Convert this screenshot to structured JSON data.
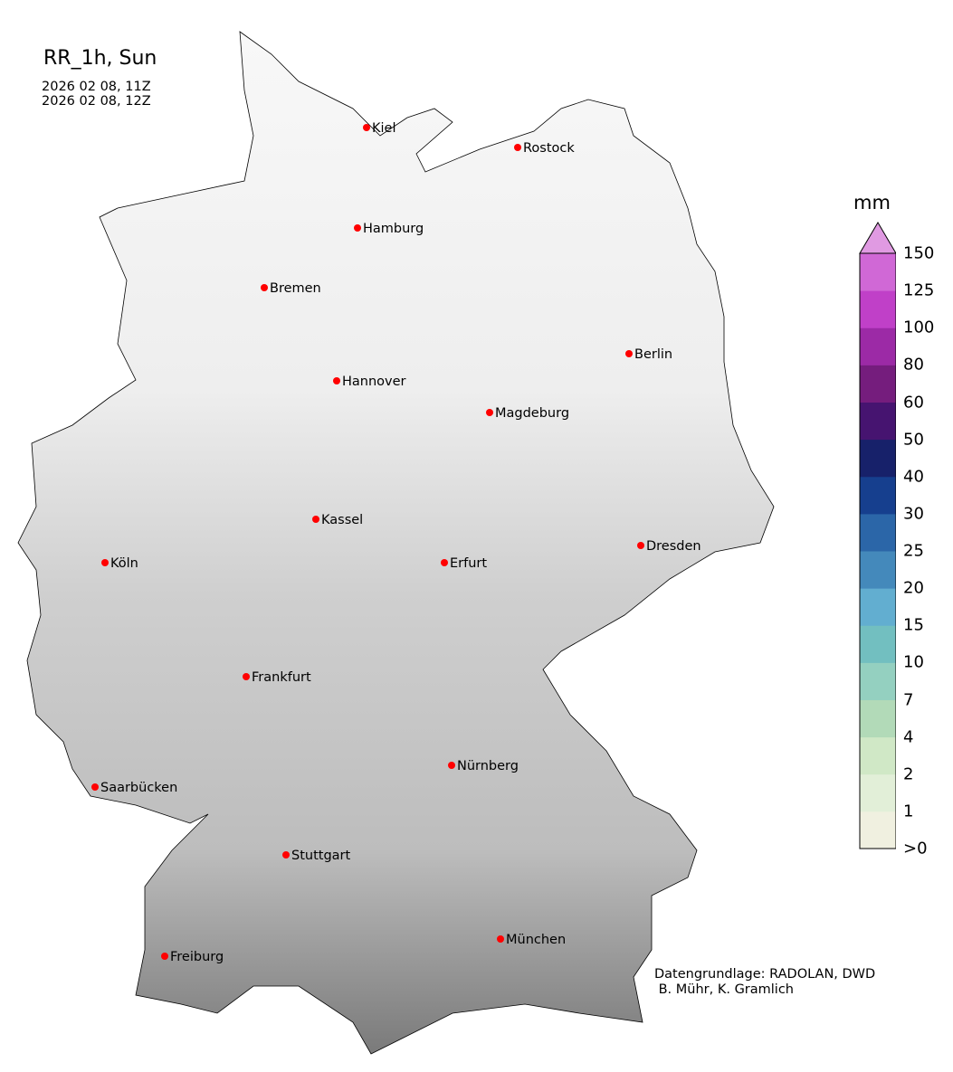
{
  "title": "RR_1h, Sun",
  "time_start": "2026 02 08, 11Z",
  "time_end": "2026 02 08, 12Z",
  "colorbar": {
    "unit": "mm",
    "ticks": [
      ">0",
      "1",
      "2",
      "4",
      "7",
      "10",
      "15",
      "20",
      "25",
      "30",
      "40",
      "50",
      "60",
      "80",
      "100",
      "125",
      "150"
    ],
    "colors": [
      "#f0f0e0",
      "#e2efd8",
      "#d0e8c6",
      "#b2dab8",
      "#94d0c0",
      "#72bfc0",
      "#62aed0",
      "#4489bb",
      "#2b66a8",
      "#163f8e",
      "#17216a",
      "#461470",
      "#751d7d",
      "#9c2aa6",
      "#c040c8",
      "#d068d6"
    ],
    "extend_color": "#e09ae2",
    "extend": "max"
  },
  "cities": [
    "Kiel",
    "Rostock",
    "Hamburg",
    "Bremen",
    "Berlin",
    "Hannover",
    "Magdeburg",
    "Kassel",
    "Köln",
    "Erfurt",
    "Dresden",
    "Frankfurt",
    "Nürnberg",
    "Saarbücken",
    "Stuttgart",
    "München",
    "Freiburg"
  ],
  "city_marker_color": "#ff0000",
  "credit_line1": "Datengrundlage: RADOLAN, DWD",
  "credit_line2": " B. Mühr, K. Gramlich"
}
